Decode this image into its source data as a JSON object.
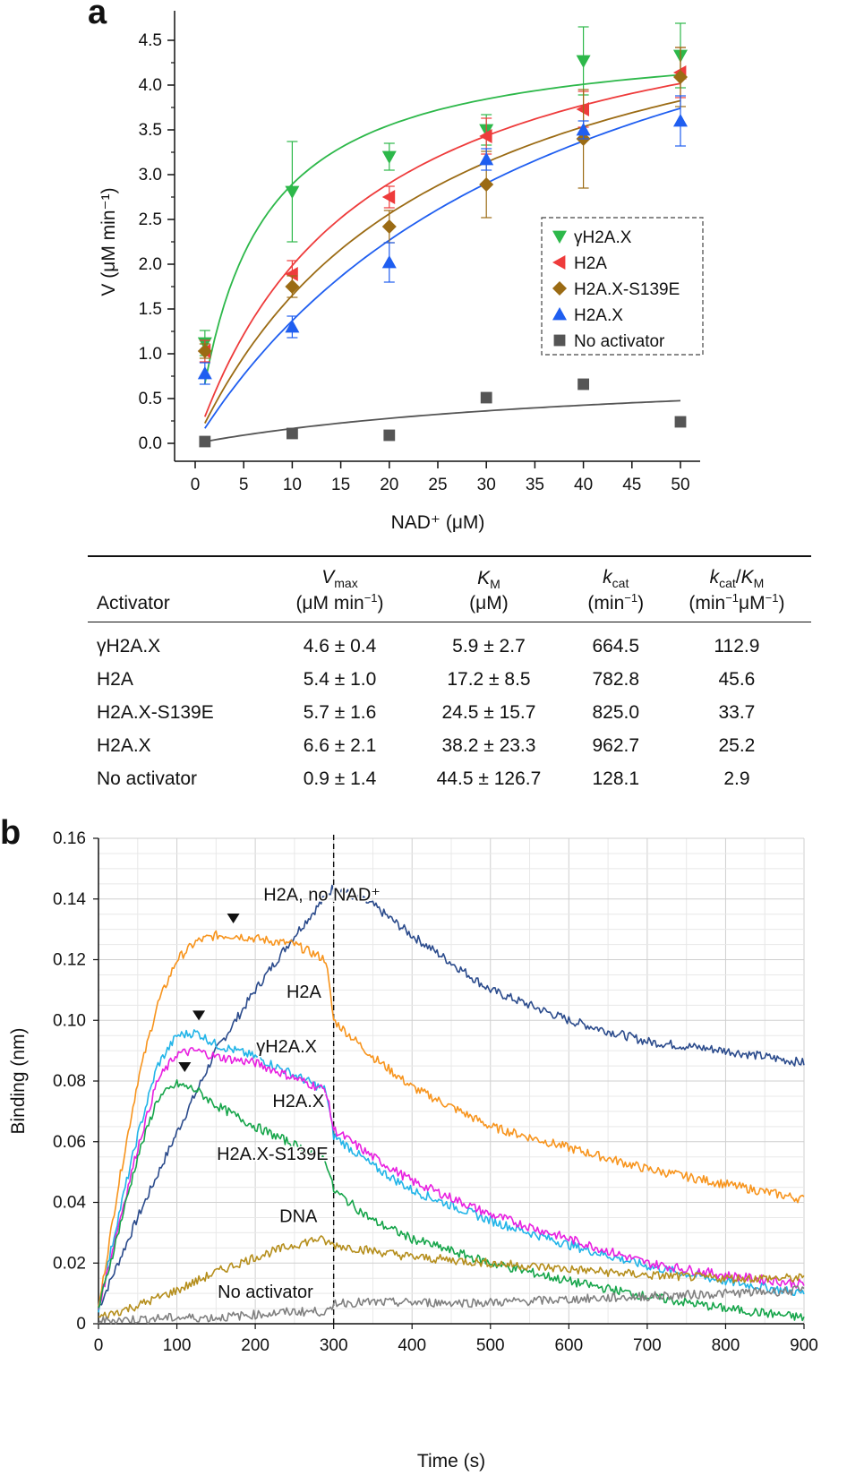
{
  "panel_a_letter": "a",
  "panel_b_letter": "b",
  "chart_data": [
    {
      "type": "scatter",
      "panel": "a",
      "xlabel": "NAD⁺ (μM)",
      "ylabel": "V (μM min⁻¹)",
      "xlim": [
        0,
        50
      ],
      "ylim": [
        0,
        4.5
      ],
      "xticks": [
        0,
        5,
        10,
        15,
        20,
        25,
        30,
        35,
        40,
        45,
        50
      ],
      "yticks": [
        0.0,
        0.5,
        1.0,
        1.5,
        2.0,
        2.5,
        3.0,
        3.5,
        4.0,
        4.5
      ],
      "grid": false,
      "legend_position": "center-right",
      "series": [
        {
          "name": "γH2A.X",
          "marker": "triangle-down",
          "color": "#2db84a",
          "x": [
            1,
            10,
            20,
            30,
            40,
            50
          ],
          "y": [
            1.12,
            2.81,
            3.2,
            3.5,
            4.27,
            4.33
          ],
          "err": [
            0.14,
            0.56,
            0.15,
            0.17,
            0.38,
            0.36
          ],
          "fit": {
            "vmax": 4.6,
            "km": 5.9
          }
        },
        {
          "name": "H2A",
          "marker": "triangle-left",
          "color": "#ee3b3b",
          "x": [
            1,
            10,
            20,
            30,
            40,
            50
          ],
          "y": [
            1.03,
            1.89,
            2.75,
            3.43,
            3.73,
            4.14
          ],
          "err": [
            0.12,
            0.15,
            0.12,
            0.2,
            0.2,
            0.28
          ],
          "fit": {
            "vmax": 5.4,
            "km": 17.2
          }
        },
        {
          "name": "H2A.X-S139E",
          "marker": "diamond",
          "color": "#9b6b14",
          "x": [
            1,
            10,
            20,
            30,
            40,
            50
          ],
          "y": [
            1.03,
            1.75,
            2.42,
            2.89,
            3.4,
            4.09
          ],
          "err": [
            0.08,
            0.12,
            0.18,
            0.37,
            0.55,
            0.33
          ],
          "fit": {
            "vmax": 5.7,
            "km": 24.5
          }
        },
        {
          "name": "H2A.X",
          "marker": "triangle-up",
          "color": "#1f5ef0",
          "x": [
            1,
            10,
            20,
            30,
            40,
            50
          ],
          "y": [
            0.78,
            1.3,
            2.02,
            3.17,
            3.5,
            3.6
          ],
          "err": [
            0.12,
            0.12,
            0.22,
            0.12,
            0.1,
            0.28
          ],
          "fit": {
            "vmax": 6.6,
            "km": 38.2
          }
        },
        {
          "name": "No activator",
          "marker": "square",
          "color": "#555555",
          "x": [
            1,
            10,
            20,
            30,
            40,
            50
          ],
          "y": [
            0.02,
            0.11,
            0.09,
            0.51,
            0.66,
            0.24
          ],
          "err": [
            0,
            0,
            0,
            0,
            0,
            0
          ],
          "fit": {
            "vmax": 0.9,
            "km": 44.5
          }
        }
      ]
    },
    {
      "type": "line",
      "panel": "b",
      "xlabel": "Time (s)",
      "ylabel": "Binding (nm)",
      "xlim": [
        0,
        900
      ],
      "ylim": [
        0,
        0.16
      ],
      "xticks": [
        0,
        100,
        200,
        300,
        400,
        500,
        600,
        700,
        800,
        900
      ],
      "yticks": [
        "0",
        "0.02",
        "0.04",
        "0.06",
        "0.08",
        "0.10",
        "0.12",
        "0.14",
        "0.16"
      ],
      "grid": true,
      "vertical_line_x": 300,
      "series": [
        {
          "name": "H2A, no NAD⁺",
          "color": "#2b4b8c",
          "x": [
            0,
            50,
            100,
            150,
            200,
            250,
            300,
            350,
            400,
            500,
            600,
            700,
            800,
            900
          ],
          "y": [
            0.005,
            0.035,
            0.063,
            0.09,
            0.11,
            0.128,
            0.144,
            0.138,
            0.128,
            0.11,
            0.1,
            0.093,
            0.09,
            0.086
          ]
        },
        {
          "name": "H2A",
          "color": "#f7941d",
          "x": [
            0,
            25,
            50,
            75,
            100,
            125,
            150,
            175,
            200,
            250,
            290,
            300,
            350,
            400,
            500,
            600,
            700,
            800,
            900
          ],
          "y": [
            0.005,
            0.045,
            0.08,
            0.105,
            0.12,
            0.126,
            0.128,
            0.128,
            0.127,
            0.125,
            0.12,
            0.1,
            0.088,
            0.078,
            0.065,
            0.058,
            0.051,
            0.046,
            0.041
          ]
        },
        {
          "name": "γH2A.X",
          "color": "#21b4e8",
          "x": [
            0,
            25,
            50,
            75,
            100,
            125,
            150,
            200,
            250,
            290,
            300,
            350,
            400,
            500,
            600,
            700,
            800,
            900
          ],
          "y": [
            0.005,
            0.035,
            0.062,
            0.085,
            0.095,
            0.096,
            0.092,
            0.088,
            0.082,
            0.077,
            0.062,
            0.052,
            0.044,
            0.034,
            0.026,
            0.019,
            0.014,
            0.01
          ]
        },
        {
          "name": "H2A.X",
          "color": "#e81fe0",
          "x": [
            0,
            25,
            50,
            75,
            100,
            125,
            150,
            200,
            250,
            290,
            300,
            350,
            400,
            500,
            600,
            700,
            800,
            900
          ],
          "y": [
            0.005,
            0.032,
            0.058,
            0.08,
            0.089,
            0.09,
            0.088,
            0.086,
            0.081,
            0.077,
            0.064,
            0.055,
            0.047,
            0.036,
            0.028,
            0.02,
            0.016,
            0.013
          ]
        },
        {
          "name": "H2A.X-S139E",
          "color": "#16a54a",
          "x": [
            0,
            25,
            50,
            75,
            100,
            125,
            150,
            200,
            250,
            290,
            300,
            350,
            400,
            500,
            600,
            700,
            800,
            900
          ],
          "y": [
            0.005,
            0.03,
            0.055,
            0.074,
            0.079,
            0.077,
            0.072,
            0.065,
            0.059,
            0.054,
            0.044,
            0.034,
            0.028,
            0.02,
            0.014,
            0.009,
            0.005,
            0.002
          ]
        },
        {
          "name": "DNA",
          "color": "#b58e1c",
          "x": [
            0,
            50,
            100,
            150,
            200,
            250,
            280,
            300,
            350,
            400,
            500,
            600,
            700,
            800,
            900
          ],
          "y": [
            0.002,
            0.006,
            0.011,
            0.017,
            0.022,
            0.026,
            0.028,
            0.026,
            0.024,
            0.022,
            0.02,
            0.018,
            0.016,
            0.015,
            0.015
          ]
        },
        {
          "name": "No activator",
          "color": "#808080",
          "x": [
            0,
            50,
            100,
            150,
            200,
            250,
            299,
            300,
            400,
            500,
            600,
            700,
            800,
            900
          ],
          "y": [
            0.001,
            0.0015,
            0.002,
            0.002,
            0.003,
            0.004,
            0.004,
            0.007,
            0.007,
            0.007,
            0.008,
            0.009,
            0.01,
            0.011
          ]
        }
      ],
      "annotations": [
        "H2A, no NAD⁺",
        "H2A",
        "γH2A.X",
        "H2A.X",
        "H2A.X-S139E",
        "DNA",
        "No activator"
      ],
      "peak_markers": [
        {
          "series": "H2A",
          "x": 172,
          "y": 0.129
        },
        {
          "series": "γH2A.X",
          "x": 128,
          "y": 0.097
        },
        {
          "series": "H2A.X-S139E",
          "x": 110,
          "y": 0.08
        }
      ]
    }
  ],
  "table": {
    "headers": [
      {
        "main": "Activator",
        "sub": ""
      },
      {
        "main": "Vmax",
        "sub": "(μM min⁻¹)"
      },
      {
        "main": "KM",
        "sub": "(μM)"
      },
      {
        "main": "kcat",
        "sub": "(min⁻¹)"
      },
      {
        "main": "kcat/KM",
        "sub": "(min⁻¹μM⁻¹)"
      }
    ],
    "rows": [
      [
        "γH2A.X",
        "4.6 ± 0.4",
        "5.9 ± 2.7",
        "664.5",
        "112.9"
      ],
      [
        "H2A",
        "5.4 ± 1.0",
        "17.2 ± 8.5",
        "782.8",
        "45.6"
      ],
      [
        "H2A.X-S139E",
        "5.7 ± 1.6",
        "24.5 ± 15.7",
        "825.0",
        "33.7"
      ],
      [
        "H2A.X",
        "6.6 ± 2.1",
        "38.2 ± 23.3",
        "962.7",
        "25.2"
      ],
      [
        "No activator",
        "0.9 ± 1.4",
        "44.5 ± 126.7",
        "128.1",
        "2.9"
      ]
    ]
  }
}
